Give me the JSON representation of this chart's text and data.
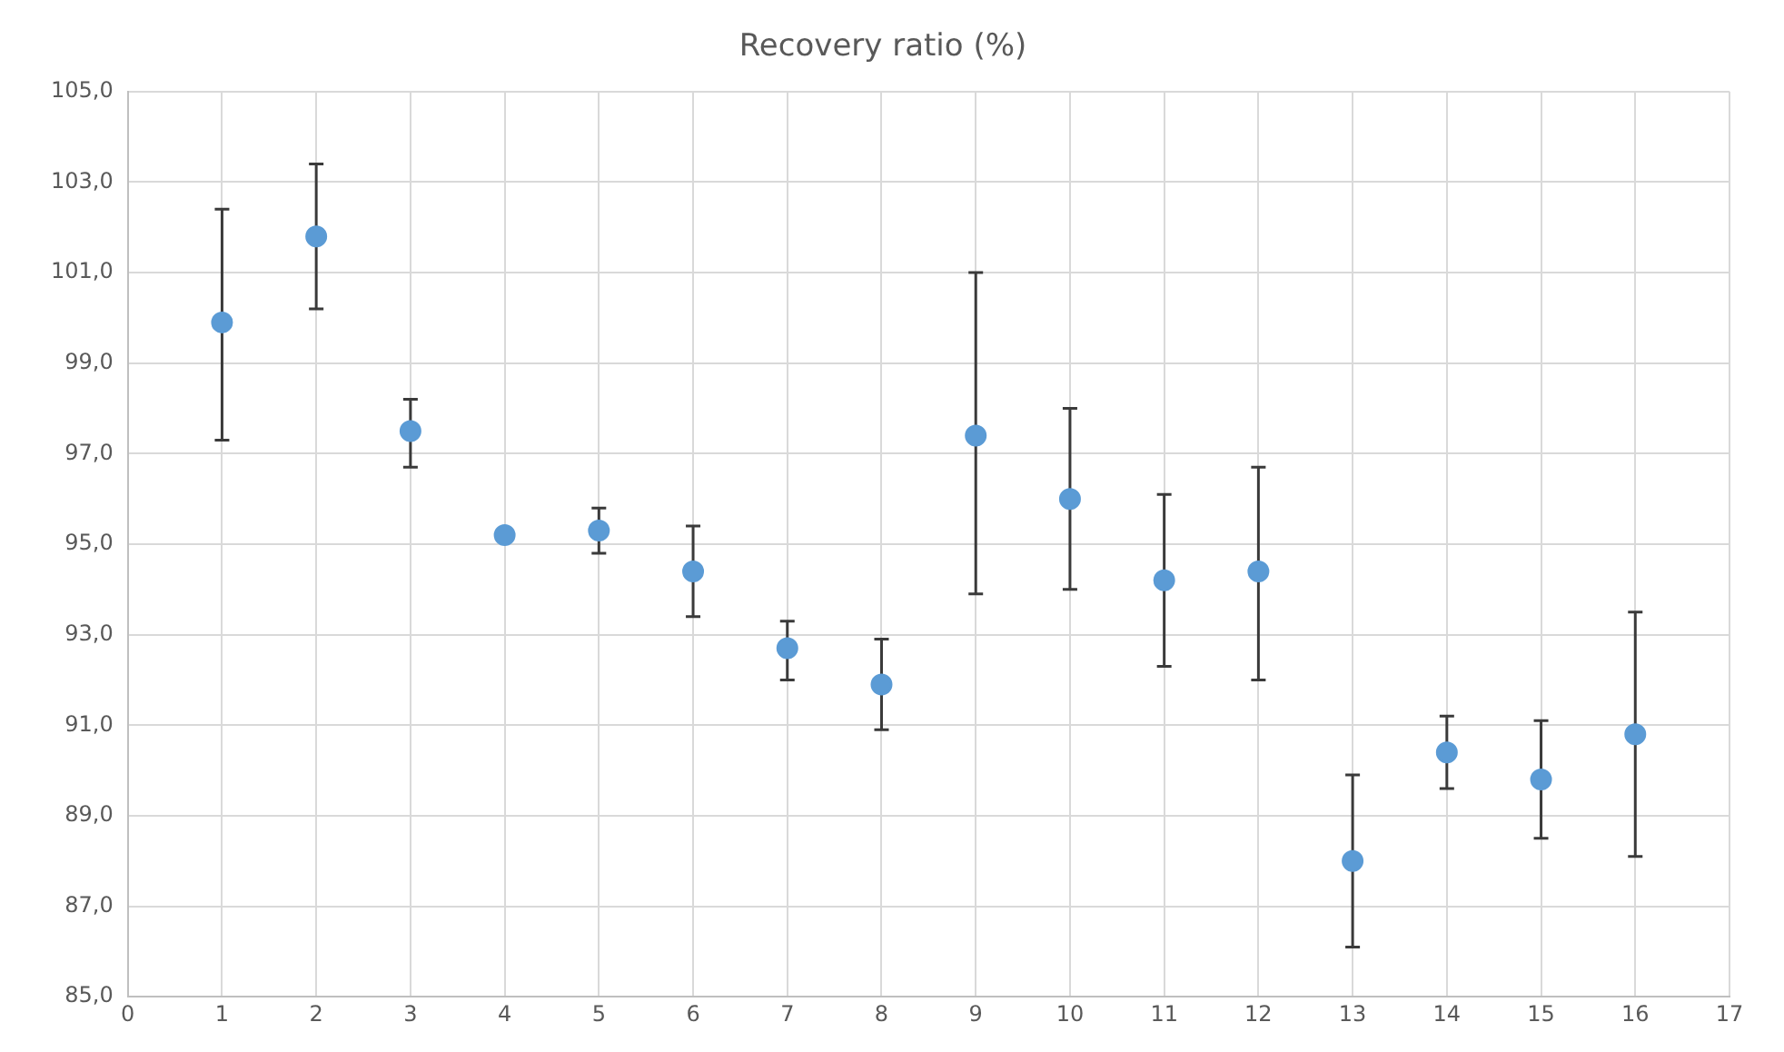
{
  "chart_data": {
    "type": "scatter",
    "title": "Recovery ratio (%)",
    "x": [
      1,
      2,
      3,
      4,
      5,
      6,
      7,
      8,
      9,
      10,
      11,
      12,
      13,
      14,
      15,
      16
    ],
    "series": [
      {
        "color": "#5b9bd5",
        "values": [
          99.9,
          101.8,
          97.5,
          95.2,
          95.3,
          94.4,
          92.7,
          91.9,
          97.4,
          96.0,
          94.2,
          94.4,
          88.0,
          90.4,
          89.8,
          90.8
        ],
        "errors": [
          [
            97.3,
            102.4
          ],
          [
            100.2,
            103.4
          ],
          [
            96.7,
            98.2
          ],
          null,
          [
            94.8,
            95.8
          ],
          [
            93.4,
            95.4
          ],
          [
            92.0,
            93.3
          ],
          [
            90.9,
            92.9
          ],
          [
            93.9,
            101.0
          ],
          [
            94.0,
            98.0
          ],
          [
            92.3,
            96.1
          ],
          [
            92.0,
            96.7
          ],
          [
            86.1,
            89.9
          ],
          [
            89.6,
            91.2
          ],
          [
            88.5,
            91.1
          ],
          [
            88.1,
            93.5
          ]
        ]
      }
    ],
    "xlim": [
      0,
      17
    ],
    "xticks": [
      0,
      1,
      2,
      3,
      4,
      5,
      6,
      7,
      8,
      9,
      10,
      11,
      12,
      13,
      14,
      15,
      16,
      17
    ],
    "ylim": [
      85,
      105
    ],
    "yticks": [
      {
        "value": 85,
        "label": "85,0"
      },
      {
        "value": 87,
        "label": "87,0"
      },
      {
        "value": 89,
        "label": "89,0"
      },
      {
        "value": 91,
        "label": "91,0"
      },
      {
        "value": 93,
        "label": "93,0"
      },
      {
        "value": 95,
        "label": "95,0"
      },
      {
        "value": 97,
        "label": "97,0"
      },
      {
        "value": 99,
        "label": "99,0"
      },
      {
        "value": 101,
        "label": "101,0"
      },
      {
        "value": 103,
        "label": "103,0"
      },
      {
        "value": 105,
        "label": "105,0"
      }
    ],
    "grid": true,
    "marker": "circle",
    "legend": false
  }
}
